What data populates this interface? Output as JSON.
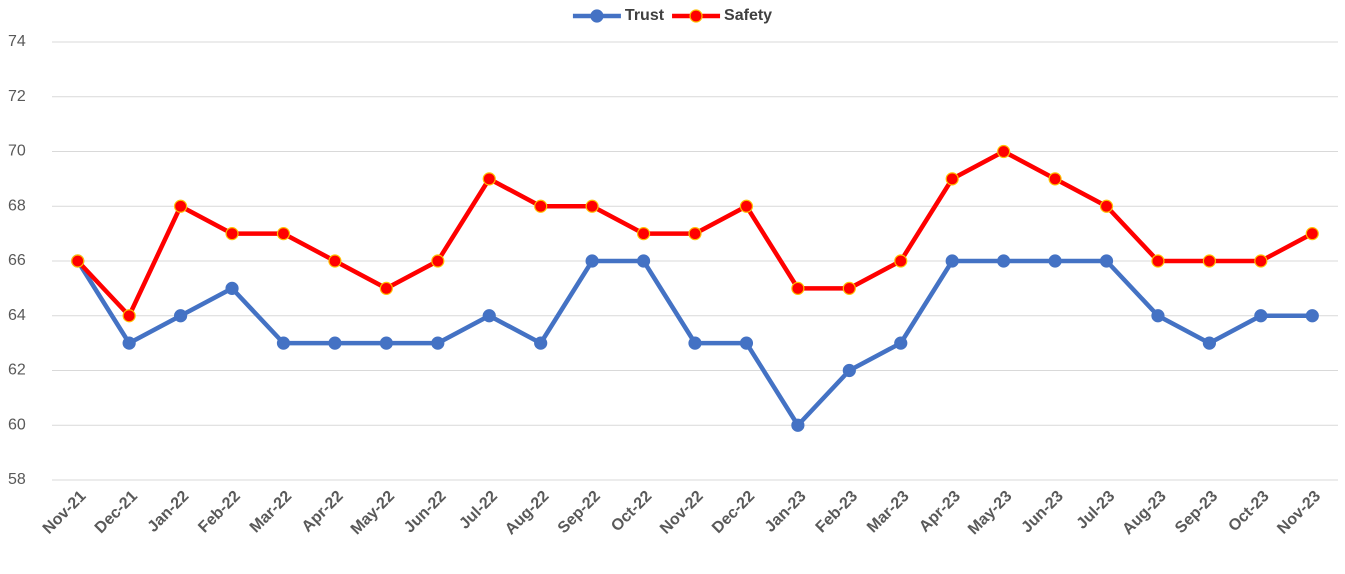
{
  "chart_data": {
    "type": "line",
    "categories": [
      "Nov-21",
      "Dec-21",
      "Jan-22",
      "Feb-22",
      "Mar-22",
      "Apr-22",
      "May-22",
      "Jun-22",
      "Jul-22",
      "Aug-22",
      "Sep-22",
      "Oct-22",
      "Nov-22",
      "Dec-22",
      "Jan-23",
      "Feb-23",
      "Mar-23",
      "Apr-23",
      "May-23",
      "Jun-23",
      "Jul-23",
      "Aug-23",
      "Sep-23",
      "Oct-23",
      "Nov-23"
    ],
    "series": [
      {
        "name": "Trust",
        "color": "#4472c4",
        "marker_edge_color": "#4472c4",
        "values": [
          66,
          63,
          64,
          65,
          63,
          63,
          63,
          63,
          64,
          63,
          66,
          66,
          63,
          63,
          60,
          62,
          63,
          66,
          66,
          66,
          66,
          64,
          63,
          64,
          64
        ]
      },
      {
        "name": "Safety",
        "color": "#ff0000",
        "marker_edge_color": "#ffc000",
        "values": [
          66,
          64,
          68,
          67,
          67,
          66,
          65,
          66,
          69,
          68,
          68,
          67,
          67,
          68,
          65,
          65,
          66,
          69,
          70,
          69,
          68,
          66,
          66,
          66,
          67
        ]
      }
    ],
    "ylim": [
      58,
      74
    ],
    "yticks": [
      58,
      60,
      62,
      64,
      66,
      68,
      70,
      72,
      74
    ],
    "grid": true,
    "legend": "top"
  }
}
